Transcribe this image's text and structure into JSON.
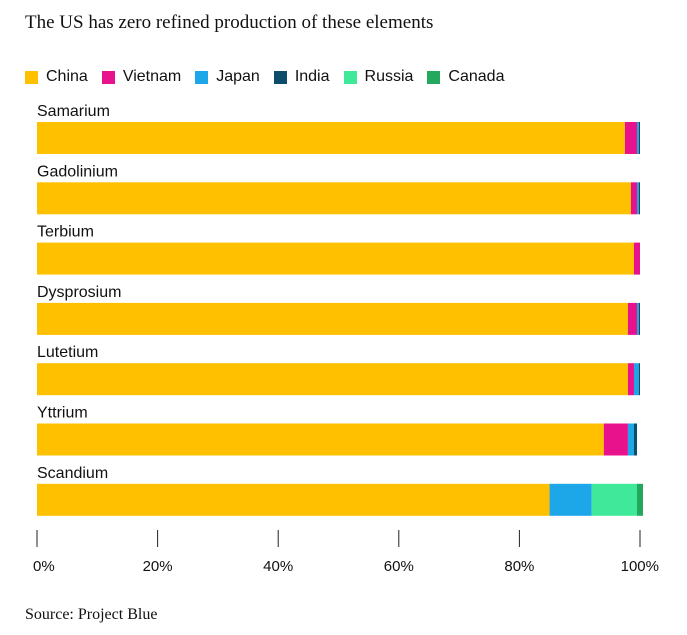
{
  "chart_data": {
    "type": "bar",
    "orientation": "horizontal",
    "stacked": true,
    "title": "The US has zero refined production of these elements",
    "source": "Source: Project Blue",
    "categories": [
      "Samarium",
      "Gadolinium",
      "Terbium",
      "Dysprosium",
      "Lutetium",
      "Yttrium",
      "Scandium"
    ],
    "series": [
      {
        "name": "China",
        "color": "#FFC000",
        "values": [
          97.5,
          98.5,
          99.0,
          98.0,
          98.0,
          94.0,
          85.0
        ]
      },
      {
        "name": "Vietnam",
        "color": "#E8138C",
        "values": [
          2.0,
          1.0,
          1.0,
          1.5,
          1.0,
          4.0,
          0.0
        ]
      },
      {
        "name": "Japan",
        "color": "#1EA7E8",
        "values": [
          0.3,
          0.3,
          0.0,
          0.3,
          0.8,
          1.0,
          7.0
        ]
      },
      {
        "name": "India",
        "color": "#0B4D6B",
        "values": [
          0.2,
          0.2,
          0.0,
          0.2,
          0.2,
          0.5,
          0.0
        ]
      },
      {
        "name": "Russia",
        "color": "#40E99A",
        "values": [
          0.0,
          0.0,
          0.0,
          0.0,
          0.0,
          0.0,
          7.5
        ]
      },
      {
        "name": "Canada",
        "color": "#24A85D",
        "values": [
          0.0,
          0.0,
          0.0,
          0.0,
          0.0,
          0.0,
          1.0
        ]
      }
    ],
    "xlim": [
      0,
      100
    ],
    "xticks": [
      0,
      20,
      40,
      60,
      80,
      100
    ],
    "xtick_labels": [
      "0%",
      "20%",
      "40%",
      "60%",
      "80%",
      "100%"
    ],
    "legend_position": "top-left",
    "grid": false
  }
}
